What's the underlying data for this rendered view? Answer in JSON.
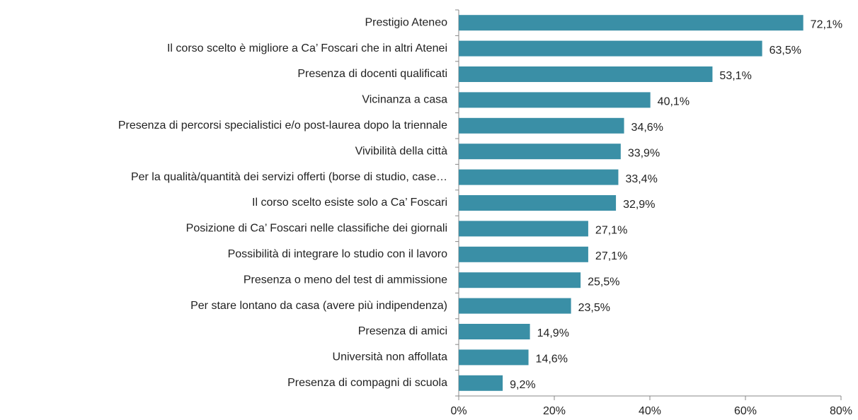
{
  "chart_data": {
    "type": "bar",
    "orientation": "horizontal",
    "categories": [
      "Prestigio Ateneo",
      "Il corso scelto è migliore a Ca’ Foscari che in altri Atenei",
      "Presenza di docenti qualificati",
      "Vicinanza a casa",
      "Presenza di percorsi specialistici e/o post-laurea dopo la triennale",
      "Vivibilità della città",
      "Per la qualità/quantità dei servizi offerti (borse di studio, case…",
      "Il corso scelto esiste solo a Ca’ Foscari",
      "Posizione di Ca’ Foscari nelle classifiche dei giornali",
      "Possibilità di integrare lo studio con il lavoro",
      "Presenza o meno del test di ammissione",
      "Per stare lontano da casa (avere più indipendenza)",
      "Presenza di amici",
      "Università non affollata",
      "Presenza di compagni di scuola"
    ],
    "values": [
      72.1,
      63.5,
      53.1,
      40.1,
      34.6,
      33.9,
      33.4,
      32.9,
      27.1,
      27.1,
      25.5,
      23.5,
      14.9,
      14.6,
      9.2
    ],
    "value_labels": [
      "72,1%",
      "63,5%",
      "53,1%",
      "40,1%",
      "34,6%",
      "33,9%",
      "33,4%",
      "32,9%",
      "27,1%",
      "27,1%",
      "25,5%",
      "23,5%",
      "14,9%",
      "14,6%",
      "9,2%"
    ],
    "color": "#3a8fa6",
    "xlim": [
      0,
      80
    ],
    "xticks": [
      {
        "value": 0,
        "label": "0%"
      },
      {
        "value": 20,
        "label": "20%"
      },
      {
        "value": 40,
        "label": "40%"
      },
      {
        "value": 60,
        "label": "60%"
      },
      {
        "value": 80,
        "label": "80%"
      }
    ]
  }
}
